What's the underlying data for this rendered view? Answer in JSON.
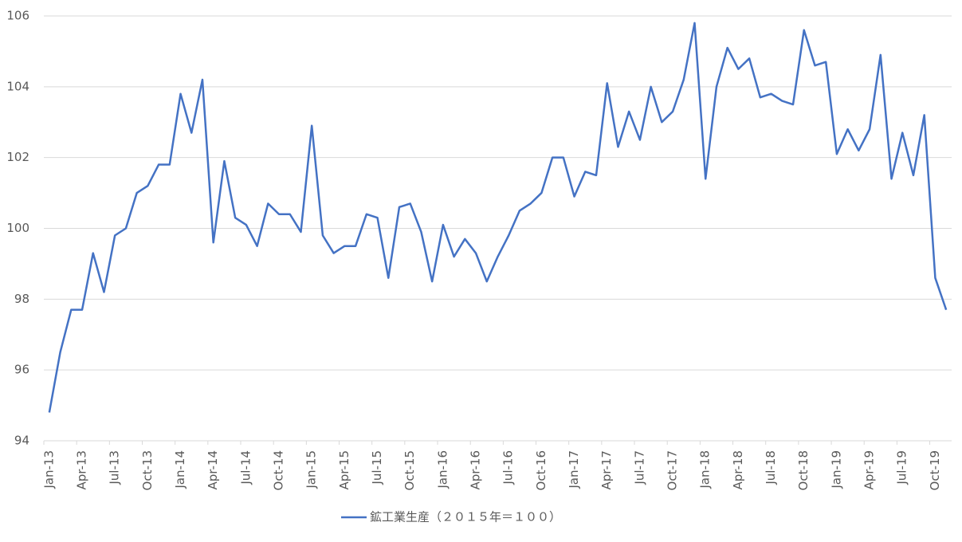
{
  "chart_data": {
    "type": "line",
    "categories": [
      "Jan-13",
      null,
      null,
      "Apr-13",
      null,
      null,
      "Jul-13",
      null,
      null,
      "Oct-13",
      null,
      null,
      "Jan-14",
      null,
      null,
      "Apr-14",
      null,
      null,
      "Jul-14",
      null,
      null,
      "Oct-14",
      null,
      null,
      "Jan-15",
      null,
      null,
      "Apr-15",
      null,
      null,
      "Jul-15",
      null,
      null,
      "Oct-15",
      null,
      null,
      "Jan-16",
      null,
      null,
      "Apr-16",
      null,
      null,
      "Jul-16",
      null,
      null,
      "Oct-16",
      null,
      null,
      "Jan-17",
      null,
      null,
      "Apr-17",
      null,
      null,
      "Jul-17",
      null,
      null,
      "Oct-17",
      null,
      null,
      "Jan-18",
      null,
      null,
      "Apr-18",
      null,
      null,
      "Jul-18",
      null,
      null,
      "Oct-18",
      null,
      null,
      "Jan-19",
      null,
      null,
      "Apr-19",
      null,
      null,
      "Jul-19",
      null,
      null,
      "Oct-19",
      null
    ],
    "series": [
      {
        "name": "鉱工業生産（２０１５年＝１００）",
        "color": "#4472c4",
        "values": [
          94.8,
          96.5,
          97.7,
          97.7,
          99.3,
          98.2,
          99.8,
          100.0,
          101.0,
          101.2,
          101.8,
          101.8,
          103.8,
          102.7,
          104.2,
          99.6,
          101.9,
          100.3,
          100.1,
          99.5,
          100.7,
          100.4,
          100.4,
          99.9,
          102.9,
          99.8,
          99.3,
          99.5,
          99.5,
          100.4,
          100.3,
          98.6,
          100.6,
          100.7,
          99.9,
          98.5,
          100.1,
          99.2,
          99.7,
          99.3,
          98.5,
          99.2,
          99.8,
          100.5,
          100.7,
          101.0,
          102.0,
          102.0,
          100.9,
          101.6,
          101.5,
          104.1,
          102.3,
          103.3,
          102.5,
          104.0,
          103.0,
          103.3,
          104.2,
          105.8,
          101.4,
          104.0,
          105.1,
          104.5,
          104.8,
          103.7,
          103.8,
          103.6,
          103.5,
          105.6,
          104.6,
          104.7,
          102.1,
          102.8,
          102.2,
          102.8,
          104.9,
          101.4,
          102.7,
          101.5,
          103.2,
          98.6,
          97.7
        ]
      }
    ],
    "ylim": [
      94,
      106
    ],
    "yticks": [
      94,
      96,
      98,
      100,
      102,
      104,
      106
    ],
    "grid": true,
    "legend": "bottom"
  }
}
